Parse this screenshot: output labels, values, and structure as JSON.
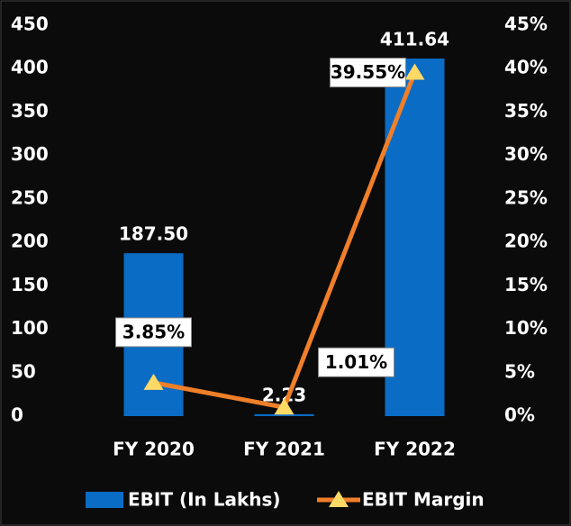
{
  "chart_data": {
    "type": "bar",
    "categories": [
      "FY 2020",
      "FY 2021",
      "FY 2022"
    ],
    "series": [
      {
        "name": "EBIT (In Lakhs)",
        "color": "#0a6cc4",
        "values": [
          187.5,
          2.23,
          411.64
        ],
        "value_labels": [
          "187.50",
          "2.23",
          "411.64"
        ]
      },
      {
        "name": "EBIT Margin",
        "type": "line",
        "axis": "y2",
        "color": "#f07f2a",
        "marker_color": "#ffd966",
        "values": [
          3.85,
          1.01,
          39.55
        ],
        "value_labels": [
          "3.85%",
          "1.01%",
          "39.55%"
        ]
      }
    ],
    "ylim": [
      0,
      450
    ],
    "yticks": [
      0,
      50,
      100,
      150,
      200,
      250,
      300,
      350,
      400,
      450
    ],
    "y2lim": [
      0,
      45
    ],
    "y2ticks": [
      {
        "value": 0,
        "label": "0%"
      },
      {
        "value": 5,
        "label": "5%"
      },
      {
        "value": 10,
        "label": "10%"
      },
      {
        "value": 15,
        "label": "15%"
      },
      {
        "value": 20,
        "label": "20%"
      },
      {
        "value": 25,
        "label": "25%"
      },
      {
        "value": 30,
        "label": "30%"
      },
      {
        "value": 35,
        "label": "35%"
      },
      {
        "value": 40,
        "label": "40%"
      },
      {
        "value": 45,
        "label": "45%"
      }
    ],
    "legend": "bottom"
  }
}
